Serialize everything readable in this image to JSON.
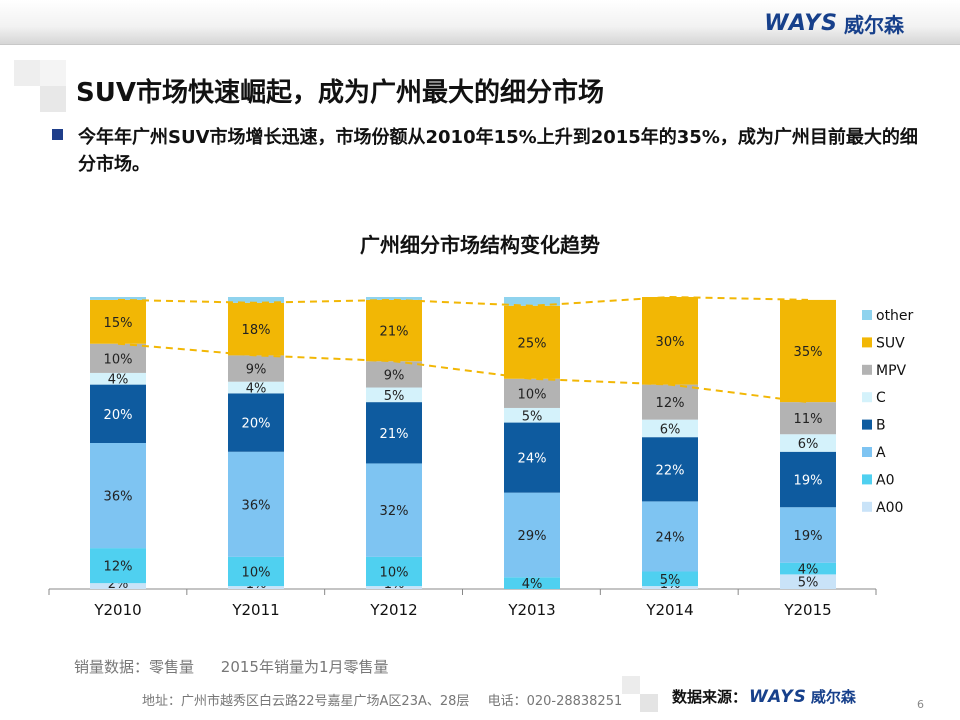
{
  "header": {
    "logo_brand": "WAYS",
    "logo_cn": "威尔森"
  },
  "slide": {
    "title": "SUV市场快速崛起，成为广州最大的细分市场",
    "bullet": "今年年广州SUV市场增长迅速，市场份额从2010年15%上升到2015年的35%，成为广州目前最大的细分市场。"
  },
  "chart_data": {
    "type": "bar",
    "stacked": true,
    "title": "广州细分市场结构变化趋势",
    "categories": [
      "Y2010",
      "Y2011",
      "Y2012",
      "Y2013",
      "Y2014",
      "Y2015"
    ],
    "series": [
      {
        "name": "A00",
        "color": "#c9e3f8",
        "values": [
          2,
          1,
          1,
          0,
          1,
          5
        ],
        "labels": [
          "2%",
          "1%",
          "1%",
          "0%",
          "1%",
          "5%"
        ]
      },
      {
        "name": "A0",
        "color": "#4fd0f0",
        "values": [
          12,
          10,
          10,
          4,
          5,
          4
        ],
        "labels": [
          "12%",
          "10%",
          "10%",
          "4%",
          "5%",
          "4%"
        ]
      },
      {
        "name": "A",
        "color": "#7ec4f2",
        "values": [
          36,
          36,
          32,
          29,
          24,
          19
        ],
        "labels": [
          "36%",
          "36%",
          "32%",
          "29%",
          "24%",
          "19%"
        ]
      },
      {
        "name": "B",
        "color": "#0e5b9f",
        "values": [
          20,
          20,
          21,
          24,
          22,
          19
        ],
        "labels": [
          "20%",
          "20%",
          "21%",
          "24%",
          "22%",
          "19%"
        ]
      },
      {
        "name": "C",
        "color": "#d4f2fb",
        "values": [
          4,
          4,
          5,
          5,
          6,
          6
        ],
        "labels": [
          "4%",
          "4%",
          "5%",
          "5%",
          "6%",
          "6%"
        ]
      },
      {
        "name": "MPV",
        "color": "#b3b3b3",
        "values": [
          10,
          9,
          9,
          10,
          12,
          11
        ],
        "labels": [
          "10%",
          "9%",
          "9%",
          "10%",
          "12%",
          "11%"
        ]
      },
      {
        "name": "SUV",
        "color": "#f2b705",
        "values": [
          15,
          18,
          21,
          25,
          30,
          35
        ],
        "labels": [
          "15%",
          "18%",
          "21%",
          "25%",
          "30%",
          "35%"
        ]
      },
      {
        "name": "other",
        "color": "#8fd3ee",
        "values": [
          1,
          2,
          1,
          3,
          0,
          0
        ],
        "labels": [
          "",
          "",
          "",
          "",
          "",
          ""
        ]
      }
    ],
    "legend_order": [
      "other",
      "SUV",
      "MPV",
      "C",
      "B",
      "A",
      "A0",
      "A00"
    ],
    "legend_position": "right",
    "trend_line_color": "#f2b705",
    "trend_line_style": "dashed",
    "ylim": [
      0,
      100
    ],
    "grid": false
  },
  "footer": {
    "note1": "销量数据：零售量",
    "note2": "2015年销量为1月零售量",
    "address": "地址：广州市越秀区白云路22号嘉星广场A区23A、28层",
    "phone": "电话：020-28838251",
    "source_label": "数据来源：",
    "source_brand": "WAYS",
    "source_cn": "威尔森",
    "page": "6"
  }
}
